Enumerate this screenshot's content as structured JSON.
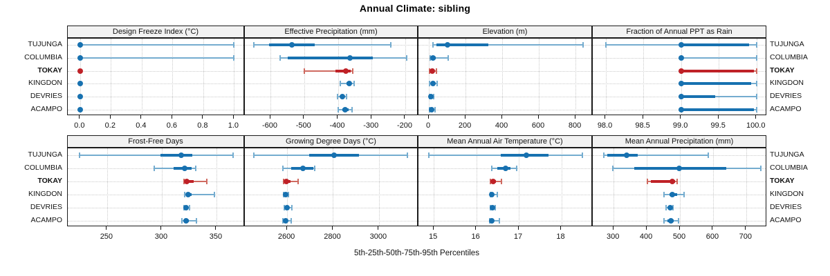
{
  "title": "Annual Climate: sibling",
  "caption": "5th-25th-50th-75th-95th Percentiles",
  "colors": {
    "blue_dark": "#1771b0",
    "blue_light": "#74accf",
    "red_dark": "#bf2127",
    "red_light": "#cf6a60",
    "strip_bg": "#f2f2f2",
    "border": "#1a1a1a",
    "grid": "#c9c9c9",
    "text": "#000000"
  },
  "chart_data": {
    "type": "dotplot-percentiles",
    "percentiles": [
      "5th",
      "25th",
      "50th",
      "75th",
      "95th"
    ],
    "groups": [
      "TUJUNGA",
      "COLUMBIA",
      "TOKAY",
      "KINGDON",
      "DEVRIES",
      "ACAMPO"
    ],
    "highlight_group": "TOKAY",
    "layout": {
      "rows": 2,
      "cols": 4,
      "grid": "dotted",
      "row_labels": "both-sides"
    },
    "panels": [
      {
        "title": "Design Freeze Index (°C)",
        "xlim": [
          -0.08,
          1.07
        ],
        "ticks": [
          0,
          0.2,
          0.4,
          0.6,
          0.8,
          1.0
        ],
        "tick_labels": [
          "0.0",
          "0.2",
          "0.4",
          "0.6",
          "0.8",
          "1.0"
        ],
        "values": {
          "TUJUNGA": [
            0,
            0,
            0,
            0,
            1
          ],
          "COLUMBIA": [
            0,
            0,
            0,
            0,
            1
          ],
          "TOKAY": [
            0,
            0,
            0,
            0,
            0
          ],
          "KINGDON": [
            0,
            0,
            0,
            0,
            0
          ],
          "DEVRIES": [
            0,
            0,
            0,
            0,
            0
          ],
          "ACAMPO": [
            0,
            0,
            0,
            0,
            0
          ]
        }
      },
      {
        "title": "Effective Precipitation (mm)",
        "xlim": [
          -676,
          -161
        ],
        "ticks": [
          -600,
          -500,
          -400,
          -300,
          -200
        ],
        "tick_labels": [
          "-600",
          "-500",
          "-400",
          "-300",
          "-200"
        ],
        "values": {
          "TUJUNGA": [
            -650,
            -605,
            -537,
            -468,
            -243
          ],
          "COLUMBIA": [
            -571,
            -548,
            -365,
            -296,
            -195
          ],
          "TOKAY": [
            -500,
            -408,
            -376,
            -362,
            -356
          ],
          "KINGDON": [
            -392,
            -375,
            -367,
            -360,
            -352
          ],
          "DEVRIES": [
            -402,
            -392,
            -386,
            -380,
            -374
          ],
          "ACAMPO": [
            -400,
            -387,
            -379,
            -368,
            -358
          ]
        }
      },
      {
        "title": "Elevation (m)",
        "xlim": [
          -57,
          894
        ],
        "ticks": [
          0,
          200,
          400,
          600,
          800
        ],
        "tick_labels": [
          "0",
          "200",
          "400",
          "600",
          "800"
        ],
        "values": {
          "TUJUNGA": [
            23,
            40,
            102,
            324,
            840
          ],
          "COLUMBIA": [
            6,
            14,
            23,
            38,
            106
          ],
          "TOKAY": [
            4,
            12,
            19,
            28,
            42
          ],
          "KINGDON": [
            5,
            13,
            21,
            32,
            46
          ],
          "DEVRIES": [
            3,
            8,
            11,
            17,
            25
          ],
          "ACAMPO": [
            4,
            9,
            15,
            22,
            34
          ]
        }
      },
      {
        "title": "Fraction of Annual PPT as Rain",
        "xlim": [
          97.83,
          100.14
        ],
        "ticks": [
          98.0,
          98.5,
          99.0,
          99.5,
          100.0
        ],
        "tick_labels": [
          "98.0",
          "98.5",
          "99.0",
          "99.5",
          "100.0"
        ],
        "values": {
          "TUJUNGA": [
            98.0,
            99.0,
            99.0,
            99.9,
            100.0
          ],
          "COLUMBIA": [
            99.0,
            99.0,
            99.0,
            99.0,
            100.0
          ],
          "TOKAY": [
            99.0,
            99.0,
            99.0,
            99.97,
            100.0
          ],
          "KINGDON": [
            99.0,
            99.0,
            99.0,
            99.93,
            100.0
          ],
          "DEVRIES": [
            99.0,
            99.0,
            99.0,
            99.45,
            100.0
          ],
          "ACAMPO": [
            99.0,
            99.0,
            99.0,
            99.97,
            100.0
          ]
        }
      },
      {
        "title": "Frost-Free Days",
        "xlim": [
          214,
          376
        ],
        "ticks": [
          250,
          300,
          350
        ],
        "tick_labels": [
          "250",
          "300",
          "350"
        ],
        "values": {
          "TUJUNGA": [
            225,
            299,
            318,
            328,
            365
          ],
          "COLUMBIA": [
            293,
            311,
            321,
            327,
            331
          ],
          "TOKAY": [
            320,
            321,
            323,
            329,
            341
          ],
          "KINGDON": [
            321,
            322,
            324,
            327,
            348
          ],
          "DEVRIES": [
            320,
            321.5,
            322.5,
            324,
            325.5
          ],
          "ACAMPO": [
            318.5,
            320.5,
            322,
            324.5,
            331.5
          ]
        }
      },
      {
        "title": "Growing Degree Days (°C)",
        "xlim": [
          2416,
          3172
        ],
        "ticks": [
          2600,
          2800,
          3000
        ],
        "tick_labels": [
          "2600",
          "2800",
          "3000"
        ],
        "values": {
          "TUJUNGA": [
            2455,
            2696,
            2806,
            2914,
            3124
          ],
          "COLUMBIA": [
            2582,
            2619,
            2670,
            2713,
            2721
          ],
          "TOKAY": [
            2584,
            2587,
            2597,
            2614,
            2647
          ],
          "KINGDON": [
            2584,
            2589,
            2594,
            2600,
            2606
          ],
          "DEVRIES": [
            2589,
            2595,
            2600,
            2610,
            2621
          ],
          "ACAMPO": [
            2582,
            2589,
            2594,
            2604,
            2618
          ]
        }
      },
      {
        "title": "Mean Annual Air Temperature (°C)",
        "xlim": [
          14.64,
          18.74
        ],
        "ticks": [
          15,
          16,
          17,
          18
        ],
        "tick_labels": [
          "15",
          "16",
          "17",
          "18"
        ],
        "values": {
          "TUJUNGA": [
            14.89,
            16.57,
            17.18,
            17.7,
            18.49
          ],
          "COLUMBIA": [
            16.37,
            16.5,
            16.69,
            16.8,
            16.95
          ],
          "TOKAY": [
            16.33,
            16.36,
            16.39,
            16.46,
            16.6
          ],
          "KINGDON": [
            16.33,
            16.35,
            16.37,
            16.42,
            16.5
          ],
          "DEVRIES": [
            16.33,
            16.36,
            16.38,
            16.41,
            16.44
          ],
          "ACAMPO": [
            16.31,
            16.34,
            16.36,
            16.42,
            16.55
          ]
        }
      },
      {
        "title": "Mean Annual Precipitation (mm)",
        "xlim": [
          237,
          763
        ],
        "ticks": [
          300,
          400,
          500,
          600,
          700
        ],
        "tick_labels": [
          "300",
          "400",
          "500",
          "600",
          "700"
        ],
        "values": {
          "TUJUNGA": [
            271,
            280,
            340,
            372,
            585
          ],
          "COLUMBIA": [
            297,
            362,
            497,
            640,
            745
          ],
          "TOKAY": [
            402,
            412,
            477,
            486,
            491
          ],
          "KINGDON": [
            452,
            468,
            478,
            492,
            512
          ],
          "DEVRIES": [
            458,
            465,
            470,
            475,
            480
          ],
          "ACAMPO": [
            452,
            463,
            472,
            482,
            495
          ]
        }
      }
    ]
  }
}
